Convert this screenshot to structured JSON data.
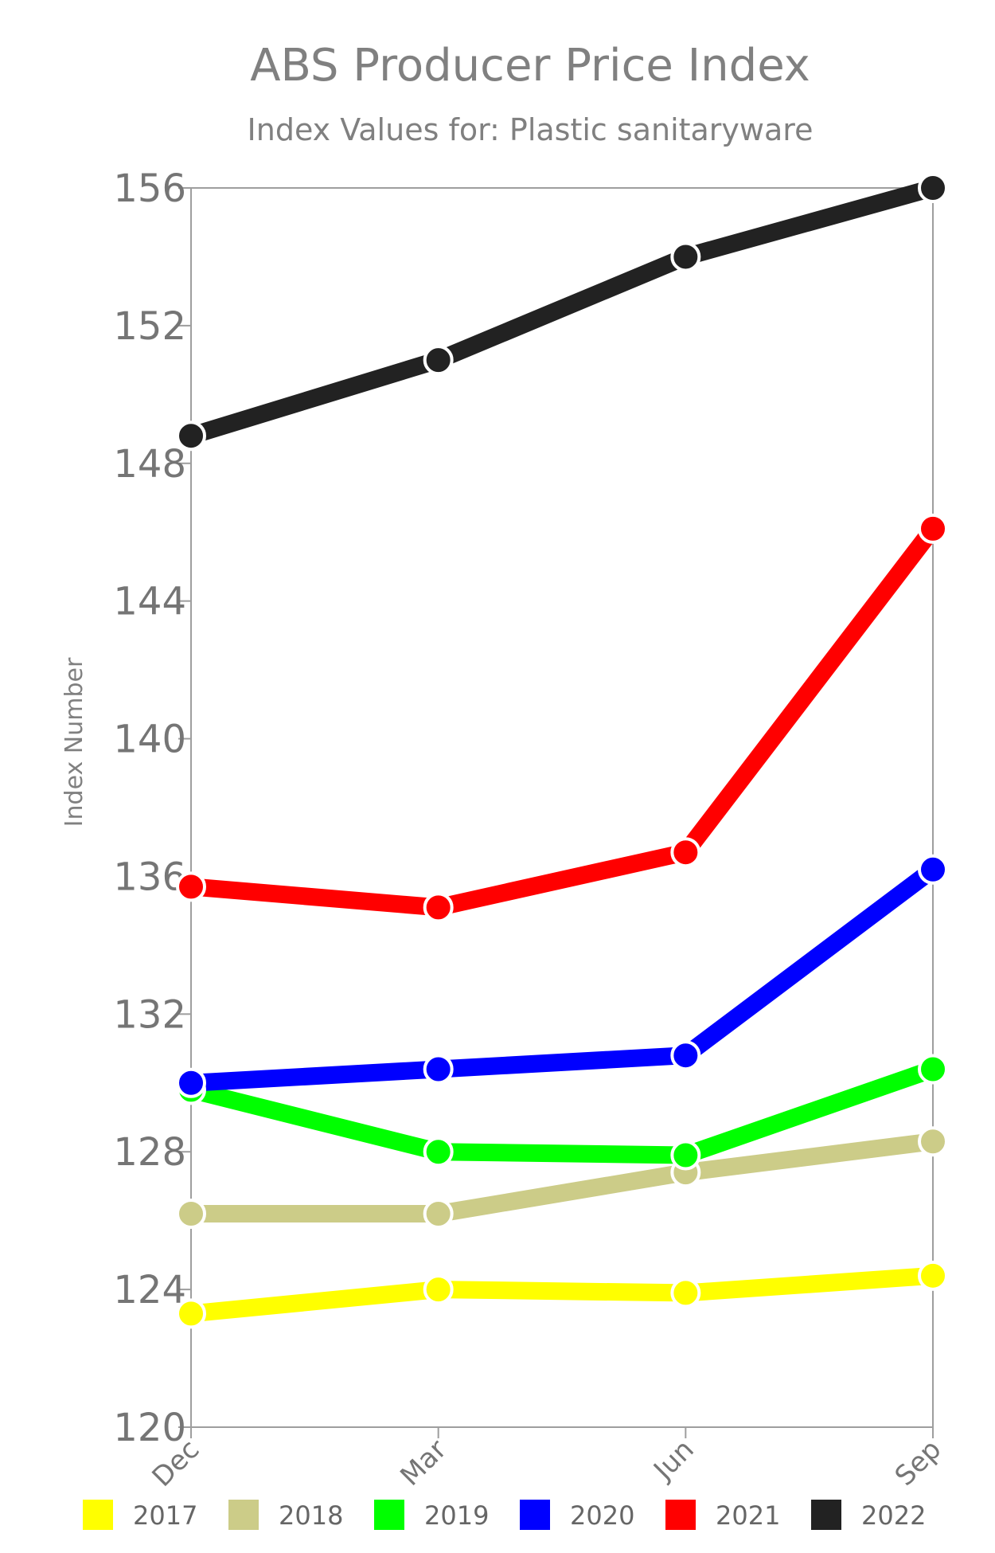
{
  "chart_data": {
    "type": "line",
    "title": "ABS Producer Price Index",
    "subtitle": "Index Values for: Plastic sanitaryware",
    "ylabel": "Index Number",
    "xlabel": "",
    "categories": [
      "Dec",
      "Mar",
      "Jun",
      "Sep"
    ],
    "ylim": [
      120,
      156
    ],
    "yticks": [
      120,
      124,
      128,
      132,
      136,
      140,
      144,
      148,
      152,
      156
    ],
    "grid": false,
    "legend_position": "bottom",
    "series": [
      {
        "name": "2017",
        "color": "#ffff00",
        "values": [
          123.3,
          124.0,
          123.9,
          124.4
        ]
      },
      {
        "name": "2018",
        "color": "#cccc88",
        "values": [
          126.2,
          126.2,
          127.4,
          128.3
        ]
      },
      {
        "name": "2019",
        "color": "#00ff00",
        "values": [
          129.8,
          128.0,
          127.9,
          130.4
        ]
      },
      {
        "name": "2020",
        "color": "#0000ff",
        "values": [
          130.0,
          130.4,
          130.8,
          136.2
        ]
      },
      {
        "name": "2021",
        "color": "#ff0000",
        "values": [
          135.7,
          135.1,
          136.7,
          146.1
        ]
      },
      {
        "name": "2022",
        "color": "#222222",
        "values": [
          148.8,
          151.0,
          154.0,
          156.0
        ]
      }
    ]
  }
}
